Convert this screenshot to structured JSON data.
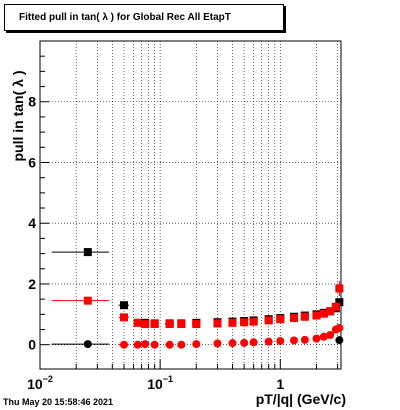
{
  "chart_data": {
    "type": "scatter",
    "title": "Fitted pull in tan( λ ) for Global Rec All EtapT",
    "xlabel": "pT/|q| (GeV/c)",
    "ylabel": "pull in tan( λ )",
    "x_scale": "log",
    "xlim": [
      0.01,
      3.2
    ],
    "ylim": [
      -0.8,
      10
    ],
    "grid": true,
    "y_ticks": [
      "0",
      "2",
      "4",
      "6",
      "8"
    ],
    "x_ticks": [
      {
        "base": "10",
        "exp": "−2"
      },
      {
        "base": "10",
        "exp": "−1"
      },
      {
        "base": "1",
        "exp": ""
      }
    ],
    "series": [
      {
        "color": "#000000",
        "marker": "square",
        "x": [
          0.025,
          0.05,
          0.075,
          0.09,
          0.12,
          0.15,
          0.2,
          0.3,
          0.4,
          0.5,
          0.6,
          0.8,
          1.0,
          1.3,
          1.6,
          2.0,
          2.3,
          2.6,
          2.9,
          3.1
        ],
        "xerr": [
          0.0125,
          0.005,
          0.005,
          0.005,
          0.01,
          0.01,
          0.015,
          0.02,
          0.025,
          0.03,
          0.04,
          0.05,
          0.06,
          0.08,
          0.1,
          0.12,
          0.1,
          0.1,
          0.08,
          0.06
        ],
        "y": [
          3.05,
          1.3,
          0.72,
          0.7,
          0.7,
          0.7,
          0.72,
          0.74,
          0.76,
          0.78,
          0.8,
          0.84,
          0.88,
          0.92,
          0.96,
          1.0,
          1.05,
          1.1,
          1.2,
          1.4
        ]
      },
      {
        "color": "#ff0000",
        "marker": "square",
        "x": [
          0.025,
          0.05,
          0.065,
          0.075,
          0.09,
          0.12,
          0.15,
          0.2,
          0.3,
          0.4,
          0.5,
          0.6,
          0.8,
          1.0,
          1.3,
          1.6,
          2.0,
          2.3,
          2.6,
          2.9,
          3.1
        ],
        "xerr": [
          0.0125,
          0.005,
          0.004,
          0.005,
          0.005,
          0.01,
          0.01,
          0.015,
          0.02,
          0.025,
          0.03,
          0.04,
          0.05,
          0.06,
          0.08,
          0.1,
          0.12,
          0.1,
          0.1,
          0.08,
          0.06
        ],
        "y": [
          1.45,
          0.9,
          0.72,
          0.68,
          0.68,
          0.68,
          0.68,
          0.68,
          0.7,
          0.72,
          0.74,
          0.76,
          0.8,
          0.84,
          0.88,
          0.92,
          0.96,
          1.02,
          1.1,
          1.25,
          1.85
        ],
        "yerr": [
          0,
          0,
          0,
          0,
          0,
          0,
          0,
          0,
          0,
          0,
          0,
          0,
          0,
          0,
          0,
          0,
          0,
          0,
          0,
          0.1,
          0.25
        ]
      },
      {
        "color": "#000000",
        "marker": "circle",
        "x": [
          0.025,
          3.1
        ],
        "xerr": [
          0.0125,
          0.06
        ],
        "y": [
          0.02,
          0.15
        ]
      },
      {
        "color": "#ff0000",
        "marker": "circle",
        "x": [
          0.05,
          0.065,
          0.075,
          0.09,
          0.12,
          0.15,
          0.2,
          0.3,
          0.4,
          0.5,
          0.6,
          0.8,
          1.0,
          1.3,
          1.6,
          2.0,
          2.3,
          2.6,
          2.9,
          3.1
        ],
        "xerr": [
          0.005,
          0.004,
          0.005,
          0.005,
          0.01,
          0.01,
          0.015,
          0.02,
          0.025,
          0.03,
          0.04,
          0.05,
          0.06,
          0.08,
          0.1,
          0.12,
          0.1,
          0.1,
          0.08,
          0.06
        ],
        "y": [
          0.0,
          0.0,
          0.02,
          0.0,
          0.0,
          0.0,
          0.02,
          0.04,
          0.05,
          0.06,
          0.08,
          0.1,
          0.12,
          0.14,
          0.16,
          0.2,
          0.26,
          0.32,
          0.5,
          0.55
        ],
        "yerr": [
          0,
          0,
          0,
          0,
          0,
          0,
          0,
          0,
          0,
          0,
          0,
          0,
          0,
          0,
          0,
          0,
          0,
          0.1,
          0.12,
          0.1
        ]
      }
    ]
  },
  "timestamp": "Thu May 20 15:58:46 2021"
}
